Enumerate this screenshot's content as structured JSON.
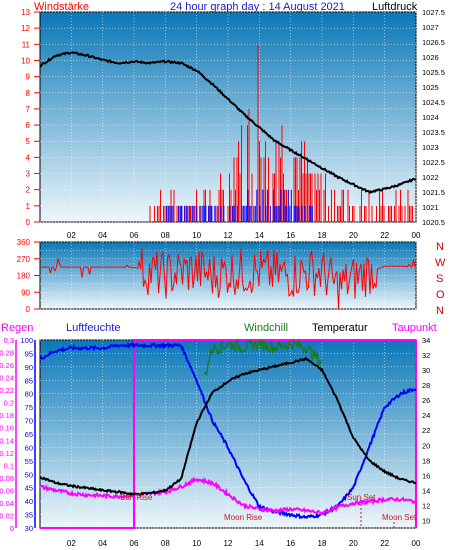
{
  "header": {
    "left_label": "Windstärke",
    "title": "24 hour graph day : 14 August 2021",
    "right_label": "Luftdruck"
  },
  "panel3_header": {
    "regen": "Regen",
    "luftfeuchte": "Luftfeuchte",
    "windchill": "Windchill",
    "temperatur": "Temperatur",
    "taupunkt": "Taupunkt"
  },
  "compass": [
    "N",
    "W",
    "S",
    "O",
    "N"
  ],
  "annotations": {
    "sun_rise": "Sun Rise",
    "moon_rise": "Moon Rise",
    "sun_set": "Sun Set",
    "moon_set": "Moon Set"
  },
  "colors": {
    "panel_top": "#0a78b8",
    "panel_bottom": "#eef6fb",
    "red": "#ff0000",
    "blue": "#0000ff",
    "black": "#000000",
    "green": "#1a7a1a",
    "magenta": "#ff00ff",
    "title_blue": "#1c1cc8"
  },
  "chart_data": [
    {
      "type": "line",
      "panel": "wind_pressure",
      "x_ticks": [
        "02",
        "04",
        "06",
        "08",
        "10",
        "12",
        "14",
        "16",
        "18",
        "20",
        "22",
        "00"
      ],
      "xlim_hours": [
        0,
        24
      ],
      "left_axis": {
        "label": "Windstärke",
        "ticks": [
          0,
          1,
          2,
          3,
          4,
          5,
          6,
          7,
          8,
          9,
          10,
          11,
          12,
          13
        ],
        "ylim": [
          0,
          13
        ]
      },
      "right_axis": {
        "label": "Luftdruck",
        "ticks": [
          "1020.5",
          "1021",
          "1021.5",
          "1022",
          "1022.5",
          "1023",
          "1023.5",
          "1024",
          "1024.5",
          "1025",
          "1025.5",
          "1026",
          "1026.5",
          "1027",
          "1027.5"
        ],
        "ylim": [
          1020.5,
          1027.5
        ]
      },
      "series": [
        {
          "name": "Luftdruck",
          "color": "black",
          "x": [
            0,
            1,
            2,
            3,
            4,
            5,
            6,
            7,
            8,
            9,
            10,
            11,
            12,
            13,
            14,
            15,
            16,
            17,
            18,
            19,
            20,
            21,
            22,
            23,
            24
          ],
          "y": [
            1025.7,
            1026.05,
            1026.15,
            1026.05,
            1025.9,
            1025.8,
            1025.85,
            1025.8,
            1025.85,
            1025.8,
            1025.55,
            1025.1,
            1024.6,
            1024.1,
            1023.65,
            1023.2,
            1022.9,
            1022.6,
            1022.3,
            1022.0,
            1021.75,
            1021.5,
            1021.6,
            1021.75,
            1021.95
          ]
        },
        {
          "name": "Windstärke Böen",
          "color": "red",
          "x": [
            7,
            9,
            10.5,
            12,
            12.5,
            13,
            13.5,
            14,
            14.5,
            15,
            15.5,
            16,
            16.5,
            17,
            17.5,
            18,
            18.5,
            19,
            19.5,
            20,
            21,
            22,
            23,
            23.8
          ],
          "y": [
            2,
            2,
            2,
            3,
            6,
            7,
            8,
            13,
            10,
            9,
            7,
            6,
            6,
            5,
            4,
            4,
            3,
            3,
            2,
            2,
            2,
            2,
            2,
            2
          ]
        },
        {
          "name": "Windstärke Mittel",
          "color": "blue",
          "x": [
            8,
            9,
            10.5,
            12,
            13,
            14,
            15,
            16,
            17,
            17.5
          ],
          "y": [
            1,
            1,
            1,
            1,
            2,
            2,
            2,
            2,
            1,
            1
          ]
        }
      ]
    },
    {
      "type": "scatter",
      "panel": "wind_direction",
      "left_axis": {
        "ticks": [
          0,
          45,
          90,
          135,
          180,
          225,
          270,
          315,
          360
        ],
        "ylim": [
          0,
          360
        ]
      },
      "right_axis": {
        "ticks": [
          "N",
          "W",
          "S",
          "O",
          "N"
        ]
      },
      "series": [
        {
          "name": "Windrichtung",
          "color": "red",
          "x": [
            0,
            2,
            4,
            6,
            7,
            8,
            9,
            10,
            11,
            12,
            13,
            14,
            15,
            16,
            17,
            18,
            19,
            20,
            21,
            22,
            23,
            24
          ],
          "y": [
            225,
            225,
            225,
            225,
            200,
            180,
            200,
            210,
            180,
            200,
            200,
            200,
            190,
            180,
            200,
            200,
            120,
            160,
            200,
            230,
            230,
            225
          ]
        }
      ]
    },
    {
      "type": "line",
      "panel": "temp_humidity",
      "axes": {
        "regen": {
          "ticks": [
            "0",
            "0.02",
            "0.04",
            "0.06",
            "0.08",
            "0.1",
            "0.12",
            "0.14",
            "0.16",
            "0.18",
            "0.2",
            "0.22",
            "0.24",
            "0.26",
            "0.28",
            "0.3"
          ],
          "ylim": [
            0,
            0.3
          ]
        },
        "luftfeuchte": {
          "ticks": [
            30,
            35,
            40,
            45,
            50,
            55,
            60,
            65,
            70,
            75,
            80,
            85,
            90,
            95,
            100
          ],
          "ylim": [
            30,
            100
          ]
        },
        "temperatur": {
          "ticks": [
            10,
            12,
            14,
            16,
            18,
            20,
            22,
            24,
            26,
            28,
            30,
            32,
            34
          ],
          "ylim": [
            9,
            34
          ]
        }
      },
      "series": [
        {
          "name": "Luftfeuchte",
          "color": "blue",
          "x": [
            0,
            1,
            2,
            3,
            4,
            5,
            6,
            7,
            8,
            9,
            10,
            11,
            12,
            13,
            14,
            15,
            16,
            17,
            18,
            19,
            20,
            21,
            22,
            23,
            24
          ],
          "y": [
            93,
            96,
            97,
            97,
            97,
            98,
            98,
            98,
            98,
            98,
            85,
            70,
            60,
            48,
            38,
            36,
            35,
            34,
            35,
            38,
            45,
            60,
            75,
            80,
            82
          ]
        },
        {
          "name": "Temperatur",
          "color": "black",
          "x": [
            0,
            1,
            2,
            3,
            4,
            5,
            6,
            7,
            8,
            9,
            10,
            11,
            12,
            13,
            14,
            15,
            16,
            17,
            18,
            19,
            20,
            21,
            22,
            23,
            24
          ],
          "y": [
            15.8,
            15.0,
            14.6,
            14.3,
            14.0,
            13.8,
            13.5,
            13.6,
            14.0,
            15.5,
            23.0,
            27.0,
            28.5,
            29.5,
            30.0,
            30.5,
            31.0,
            31.5,
            30.0,
            26.0,
            21.0,
            18.0,
            16.5,
            15.5,
            15.0
          ]
        },
        {
          "name": "Windchill",
          "color": "green",
          "x": [
            10.5,
            11,
            11.5,
            12,
            13,
            14,
            15,
            16,
            17,
            17.5,
            18
          ],
          "y": [
            29.0,
            33.0,
            33.0,
            33.5,
            33.0,
            33.5,
            33.0,
            33.5,
            33.0,
            32.0,
            31.0
          ]
        },
        {
          "name": "Taupunkt",
          "color": "magenta",
          "x": [
            0,
            1,
            2,
            3,
            4,
            5,
            6,
            7,
            8,
            9,
            10,
            11,
            12,
            13,
            14,
            15,
            16,
            17,
            18,
            19,
            20,
            21,
            22,
            23,
            24
          ],
          "y": [
            14.5,
            14.0,
            13.6,
            13.4,
            13.3,
            13.2,
            13.4,
            13.6,
            13.8,
            14.5,
            15.5,
            15.0,
            13.5,
            12.0,
            11.5,
            11.3,
            11.5,
            11.3,
            11.0,
            11.8,
            12.3,
            12.5,
            12.8,
            12.8,
            12.5
          ]
        },
        {
          "name": "Regen",
          "color": "magenta",
          "x": [
            0,
            6,
            6,
            24
          ],
          "y": [
            0,
            0,
            0.3,
            0.3
          ]
        }
      ]
    }
  ]
}
